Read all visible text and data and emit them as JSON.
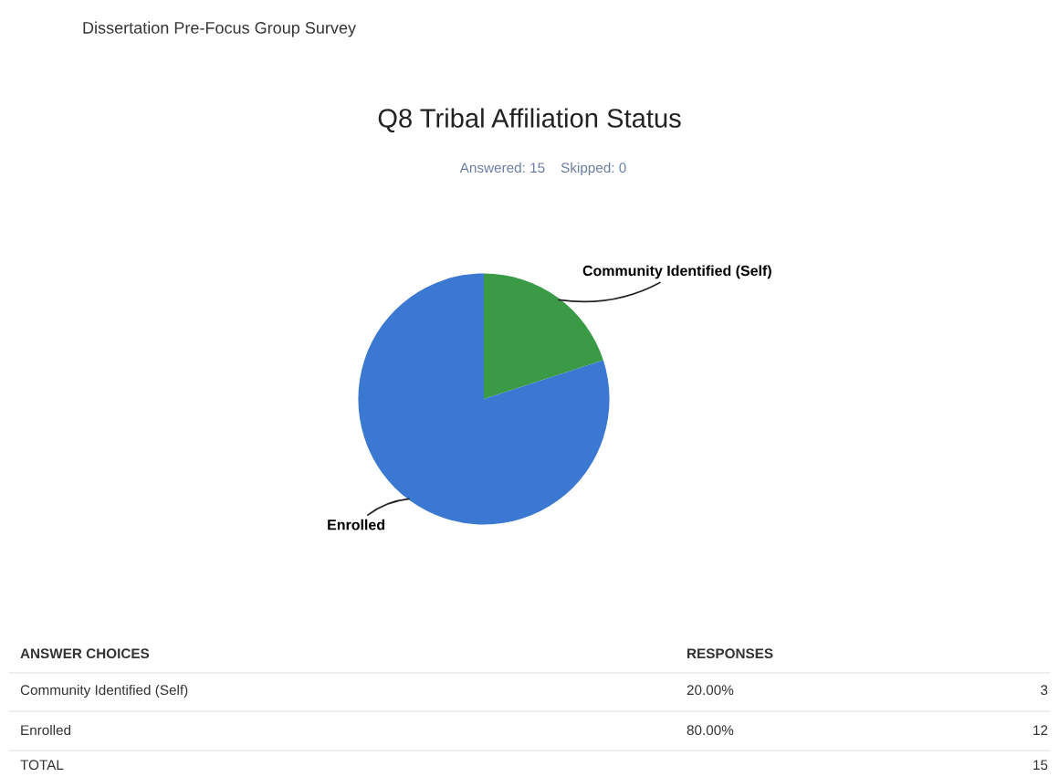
{
  "chart_data": {
    "type": "pie",
    "title": "Q8 Tribal Affiliation Status",
    "subtitle": "Answered: 15    Skipped: 0",
    "categories": [
      "Community Identified (Self)",
      "Enrolled"
    ],
    "values": [
      20,
      80
    ],
    "colors": [
      "#3a9a45",
      "#3b78d2"
    ],
    "legend": false,
    "annotations": [
      "Dissertation Pre-Focus Group Survey",
      "ANSWER CHOICES",
      "RESPONSES",
      "20.00%",
      "80.00%",
      "TOTAL",
      "15",
      "3",
      "12"
    ]
  }
}
